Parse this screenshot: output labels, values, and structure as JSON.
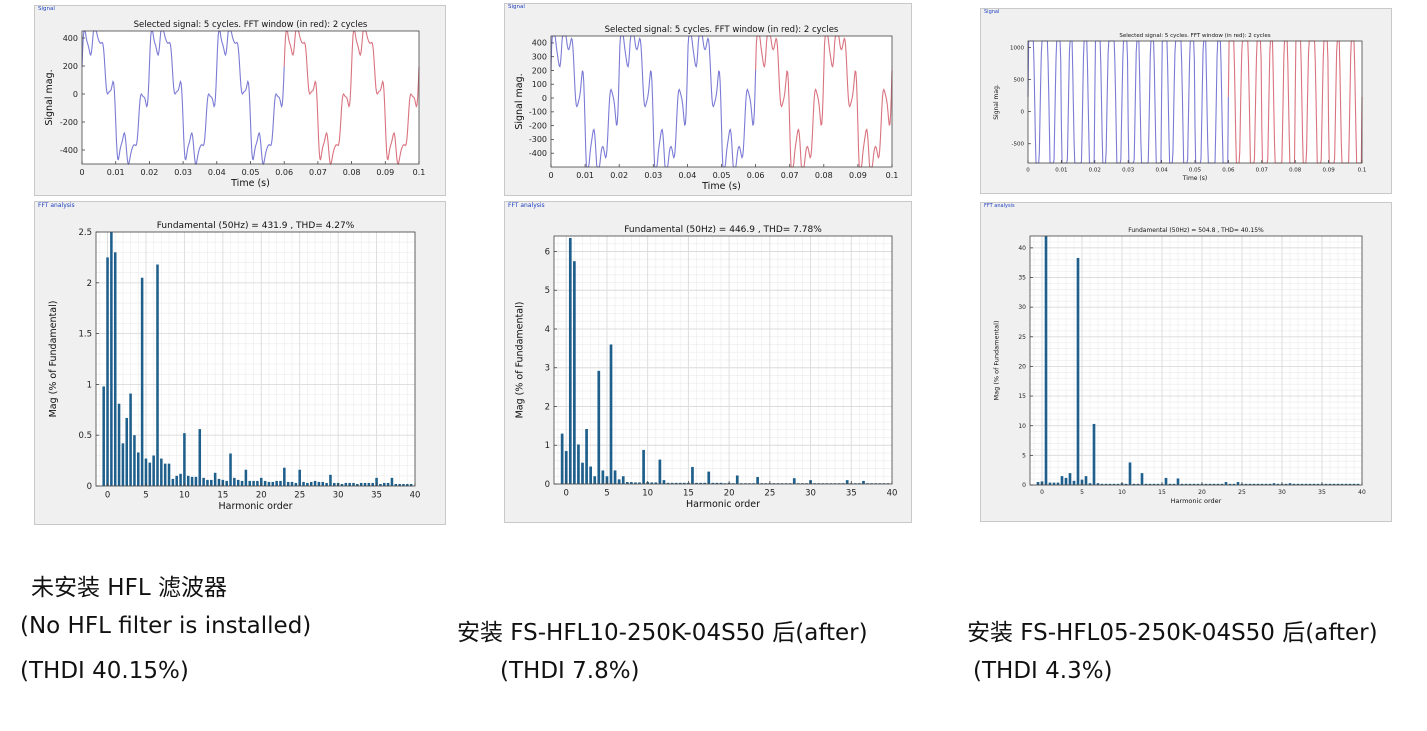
{
  "panel_labels": {
    "signal": "Signal",
    "fft": "FFT analysis"
  },
  "chart_data": [
    {
      "type": "line",
      "panel": "Signal",
      "title": "Selected signal: 5 cycles. FFT window (in red): 2 cycles",
      "xlabel": "Time (s)",
      "ylabel": "Signal mag.",
      "xlim": [
        0,
        0.1
      ],
      "ylim": [
        -500,
        450
      ],
      "xticks": [
        0,
        0.01,
        0.02,
        0.03,
        0.04,
        0.05,
        0.06,
        0.07,
        0.08,
        0.09,
        0.1
      ],
      "xtick_labels": [
        "0",
        "0.01",
        "0.02",
        "0.03",
        "0.04",
        "0.05",
        "0.06",
        "0.07",
        "0.08",
        "0.09",
        "0.1"
      ],
      "yticks": [
        -400,
        -200,
        0,
        200,
        400
      ],
      "ytick_labels": [
        "-400",
        "-200",
        "0",
        "200",
        "400"
      ],
      "grid": false,
      "fft_window": [
        0.06,
        0.1
      ],
      "colors": {
        "signal": "#7b7bd6",
        "window": "#d9737f"
      },
      "waveform": {
        "fundamental_peak": 431.9,
        "harmonics": [
          [
            5,
            0.0206,
            0
          ],
          [
            7,
            0.0219,
            0
          ],
          [
            11,
            0.0053,
            0
          ],
          [
            13,
            0.0057,
            0
          ]
        ]
      }
    },
    {
      "type": "bar",
      "panel": "FFT analysis",
      "title": "Fundamental (50Hz) = 431.9 , THD= 4.27%",
      "xlabel": "Harmonic order",
      "ylabel": "Mag (% of Fundamental)",
      "xlim": [
        -1.5,
        40
      ],
      "ylim": [
        0,
        2.5
      ],
      "xticks": [
        0,
        5,
        10,
        15,
        20,
        25,
        30,
        35,
        40
      ],
      "yticks": [
        0,
        0.5,
        1,
        1.5,
        2,
        2.5
      ],
      "ytick_labels": [
        "0",
        "0.5",
        "1",
        "1.5",
        "2",
        "2.5"
      ],
      "grid": true,
      "bar_color": "#1f5f8b",
      "categories": [
        -0.5,
        0,
        0.5,
        1,
        1.5,
        2,
        2.5,
        3,
        3.5,
        4,
        4.5,
        5,
        5.5,
        6,
        6.5,
        7,
        7.5,
        8,
        8.5,
        9,
        9.5,
        10,
        10.5,
        11,
        11.5,
        12,
        12.5,
        13,
        13.5,
        14,
        14.5,
        15,
        15.5,
        16,
        16.5,
        17,
        17.5,
        18,
        18.5,
        19,
        19.5,
        20,
        20.5,
        21,
        21.5,
        22,
        22.5,
        23,
        23.5,
        24,
        24.5,
        25,
        25.5,
        26,
        26.5,
        27,
        27.5,
        28,
        28.5,
        29,
        29.5,
        30,
        30.5,
        31,
        31.5,
        32,
        32.5,
        33,
        33.5,
        34,
        34.5,
        35,
        35.5,
        36,
        36.5,
        37,
        37.5,
        38,
        38.5,
        39,
        39.5
      ],
      "values": [
        0.98,
        2.25,
        2.55,
        2.3,
        0.81,
        0.42,
        0.67,
        0.91,
        0.5,
        0.33,
        2.05,
        0.27,
        0.23,
        0.3,
        2.18,
        0.27,
        0.22,
        0.22,
        0.07,
        0.1,
        0.12,
        0.52,
        0.1,
        0.09,
        0.09,
        0.56,
        0.08,
        0.06,
        0.06,
        0.13,
        0.07,
        0.06,
        0.05,
        0.32,
        0.08,
        0.06,
        0.05,
        0.16,
        0.05,
        0.05,
        0.05,
        0.08,
        0.05,
        0.04,
        0.04,
        0.05,
        0.05,
        0.18,
        0.04,
        0.04,
        0.03,
        0.16,
        0.04,
        0.03,
        0.04,
        0.05,
        0.04,
        0.04,
        0.03,
        0.11,
        0.03,
        0.03,
        0.02,
        0.03,
        0.03,
        0.03,
        0.02,
        0.03,
        0.03,
        0.03,
        0.03,
        0.08,
        0.02,
        0.03,
        0.03,
        0.08,
        0.02,
        0.02,
        0.02,
        0.02,
        0.02
      ]
    },
    {
      "type": "line",
      "panel": "Signal",
      "title": "Selected signal: 5 cycles. FFT window (in red): 2 cycles",
      "xlabel": "Time (s)",
      "ylabel": "Signal mag.",
      "xlim": [
        0,
        0.1
      ],
      "ylim": [
        -500,
        450
      ],
      "xticks": [
        0,
        0.01,
        0.02,
        0.03,
        0.04,
        0.05,
        0.06,
        0.07,
        0.08,
        0.09,
        0.1
      ],
      "xtick_labels": [
        "0",
        "0.01",
        "0.02",
        "0.03",
        "0.04",
        "0.05",
        "0.06",
        "0.07",
        "0.08",
        "0.09",
        "0.1"
      ],
      "yticks": [
        -400,
        -300,
        -200,
        -100,
        0,
        100,
        200,
        300,
        400
      ],
      "ytick_labels": [
        "-400",
        "-300",
        "-200",
        "-100",
        "0",
        "100",
        "200",
        "300",
        "400"
      ],
      "grid": false,
      "fft_window": [
        0.06,
        0.1
      ],
      "colors": {
        "signal": "#7b7bd6",
        "window": "#d9737f"
      },
      "waveform": {
        "fundamental_peak": 446.9,
        "harmonics": [
          [
            5,
            0.029,
            0
          ],
          [
            7,
            0.036,
            0
          ],
          [
            11,
            0.009,
            0
          ],
          [
            13,
            0.0065,
            0
          ]
        ]
      }
    },
    {
      "type": "bar",
      "panel": "FFT analysis",
      "title": "Fundamental (50Hz) = 446.9 , THD= 7.78%",
      "xlabel": "Harmonic order",
      "ylabel": "Mag (% of Fundamental)",
      "xlim": [
        -1.5,
        40
      ],
      "ylim": [
        0,
        6.4
      ],
      "xticks": [
        0,
        5,
        10,
        15,
        20,
        25,
        30,
        35,
        40
      ],
      "yticks": [
        0,
        1,
        2,
        3,
        4,
        5,
        6
      ],
      "ytick_labels": [
        "0",
        "1",
        "2",
        "3",
        "4",
        "5",
        "6"
      ],
      "grid": true,
      "bar_color": "#1f5f8b",
      "categories": [
        -0.5,
        0,
        0.5,
        1,
        1.5,
        2,
        2.5,
        3,
        3.5,
        4,
        4.5,
        5,
        5.5,
        6,
        6.5,
        7,
        7.5,
        8,
        8.5,
        9,
        9.5,
        10,
        10.5,
        11,
        11.5,
        12,
        12.5,
        13,
        13.5,
        14,
        14.5,
        15,
        15.5,
        16,
        16.5,
        17,
        17.5,
        18,
        18.5,
        19,
        19.5,
        20,
        20.5,
        21,
        21.5,
        22,
        22.5,
        23,
        23.5,
        24,
        24.5,
        25,
        25.5,
        26,
        26.5,
        27,
        27.5,
        28,
        28.5,
        29,
        29.5,
        30,
        30.5,
        31,
        31.5,
        32,
        32.5,
        33,
        33.5,
        34,
        34.5,
        35,
        35.5,
        36,
        36.5,
        37,
        37.5,
        38,
        38.5,
        39,
        39.5
      ],
      "values": [
        1.3,
        0.85,
        6.35,
        5.75,
        1.02,
        0.55,
        1.42,
        0.45,
        0.2,
        2.92,
        0.35,
        0.2,
        3.6,
        0.35,
        0.12,
        0.2,
        0.05,
        0.05,
        0.04,
        0.04,
        0.88,
        0.05,
        0.04,
        0.04,
        0.63,
        0.1,
        0.03,
        0.03,
        0.03,
        0.03,
        0.03,
        0.03,
        0.44,
        0.03,
        0.03,
        0.03,
        0.32,
        0.03,
        0.03,
        0.03,
        0.02,
        0.03,
        0.02,
        0.22,
        0.02,
        0.02,
        0.02,
        0.02,
        0.18,
        0.02,
        0.02,
        0.02,
        0.02,
        0.02,
        0.02,
        0.02,
        0.02,
        0.15,
        0.02,
        0.02,
        0.02,
        0.1,
        0.02,
        0.02,
        0.02,
        0.02,
        0.02,
        0.02,
        0.02,
        0.02,
        0.1,
        0.02,
        0.02,
        0.02,
        0.08,
        0.02,
        0.02,
        0.02,
        0.02,
        0.02,
        0.02
      ]
    },
    {
      "type": "line",
      "panel": "Signal",
      "title": "Selected signal: 5 cycles. FFT window (in red): 2 cycles",
      "xlabel": "Time (s)",
      "ylabel": "Signal mag.",
      "xlim": [
        0,
        0.1
      ],
      "ylim": [
        -800,
        1100
      ],
      "xticks": [
        0,
        0.01,
        0.02,
        0.03,
        0.04,
        0.05,
        0.06,
        0.07,
        0.08,
        0.09,
        0.1
      ],
      "xtick_labels": [
        "0",
        "0.01",
        "0.02",
        "0.03",
        "0.04",
        "0.05",
        "0.06",
        "0.07",
        "0.08",
        "0.09",
        "0.1"
      ],
      "yticks": [
        -500,
        0,
        500,
        1000
      ],
      "ytick_labels": [
        "-500",
        "0",
        "500",
        "1000"
      ],
      "grid": false,
      "fft_window": [
        0.06,
        0.1
      ],
      "colors": {
        "signal": "#7b7bd6",
        "window": "#d9737f"
      },
      "waveform": {
        "fundamental_peak": 504.8,
        "harmonics": [
          [
            5,
            0.38,
            0
          ],
          [
            7,
            0.1,
            0
          ],
          [
            11,
            0.04,
            0
          ],
          [
            13,
            0.02,
            0
          ]
        ]
      }
    },
    {
      "type": "bar",
      "panel": "FFT analysis",
      "title": "Fundamental (50Hz) = 504.8 , THD= 40.15%",
      "xlabel": "Harmonic order",
      "ylabel": "Mag (% of Fundamental)",
      "xlim": [
        -1.5,
        40
      ],
      "ylim": [
        0,
        42
      ],
      "xticks": [
        0,
        5,
        10,
        15,
        20,
        25,
        30,
        35,
        40
      ],
      "yticks": [
        0,
        5,
        10,
        15,
        20,
        25,
        30,
        35,
        40
      ],
      "ytick_labels": [
        "0",
        "5",
        "10",
        "15",
        "20",
        "25",
        "30",
        "35",
        "40"
      ],
      "grid": true,
      "bar_color": "#1f5f8b",
      "categories": [
        -0.5,
        0,
        0.5,
        1,
        1.5,
        2,
        2.5,
        3,
        3.5,
        4,
        4.5,
        5,
        5.5,
        6,
        6.5,
        7,
        7.5,
        8,
        8.5,
        9,
        9.5,
        10,
        10.5,
        11,
        11.5,
        12,
        12.5,
        13,
        13.5,
        14,
        14.5,
        15,
        15.5,
        16,
        16.5,
        17,
        17.5,
        18,
        18.5,
        19,
        19.5,
        20,
        20.5,
        21,
        21.5,
        22,
        22.5,
        23,
        23.5,
        24,
        24.5,
        25,
        25.5,
        26,
        26.5,
        27,
        27.5,
        28,
        28.5,
        29,
        29.5,
        30,
        30.5,
        31,
        31.5,
        32,
        32.5,
        33,
        33.5,
        34,
        34.5,
        35,
        35.5,
        36,
        36.5,
        37,
        37.5,
        38,
        38.5,
        39,
        39.5
      ],
      "values": [
        0.5,
        0.6,
        42,
        0.4,
        0.4,
        0.4,
        1.5,
        1.2,
        2,
        0.7,
        38.3,
        0.9,
        1.5,
        0.3,
        10.3,
        0.3,
        0.2,
        0.2,
        0.2,
        0.2,
        0.2,
        0.3,
        0.2,
        3.8,
        0.2,
        0.2,
        2,
        0.2,
        0.2,
        0.2,
        0.2,
        0.2,
        1.2,
        0.2,
        0.2,
        1.1,
        0.2,
        0.2,
        0.2,
        0.2,
        0.2,
        0.2,
        0.2,
        0.2,
        0.2,
        0.2,
        0.2,
        0.5,
        0.2,
        0.2,
        0.5,
        0.2,
        0.2,
        0.2,
        0.2,
        0.2,
        0.2,
        0.2,
        0.2,
        0.3,
        0.2,
        0.2,
        0.2,
        0.3,
        0.2,
        0.2,
        0.2,
        0.2,
        0.2,
        0.2,
        0.2,
        0.2,
        0.2,
        0.2,
        0.2,
        0.2,
        0.2,
        0.2,
        0.2,
        0.2,
        0.2
      ]
    }
  ],
  "captions": {
    "col1_line1": "未安装 HFL 滤波器",
    "col1_line2": "(No HFL filter is installed)",
    "col1_line3": "(THDI 40.15%)",
    "col2_line1": "安装 FS-HFL10-250K-04S50 后(after)",
    "col2_line2": "(THDI 7.8%)",
    "col3_line1": "安装 FS-HFL05-250K-04S50 后(after)",
    "col3_line2": "(THDI 4.3%)"
  }
}
